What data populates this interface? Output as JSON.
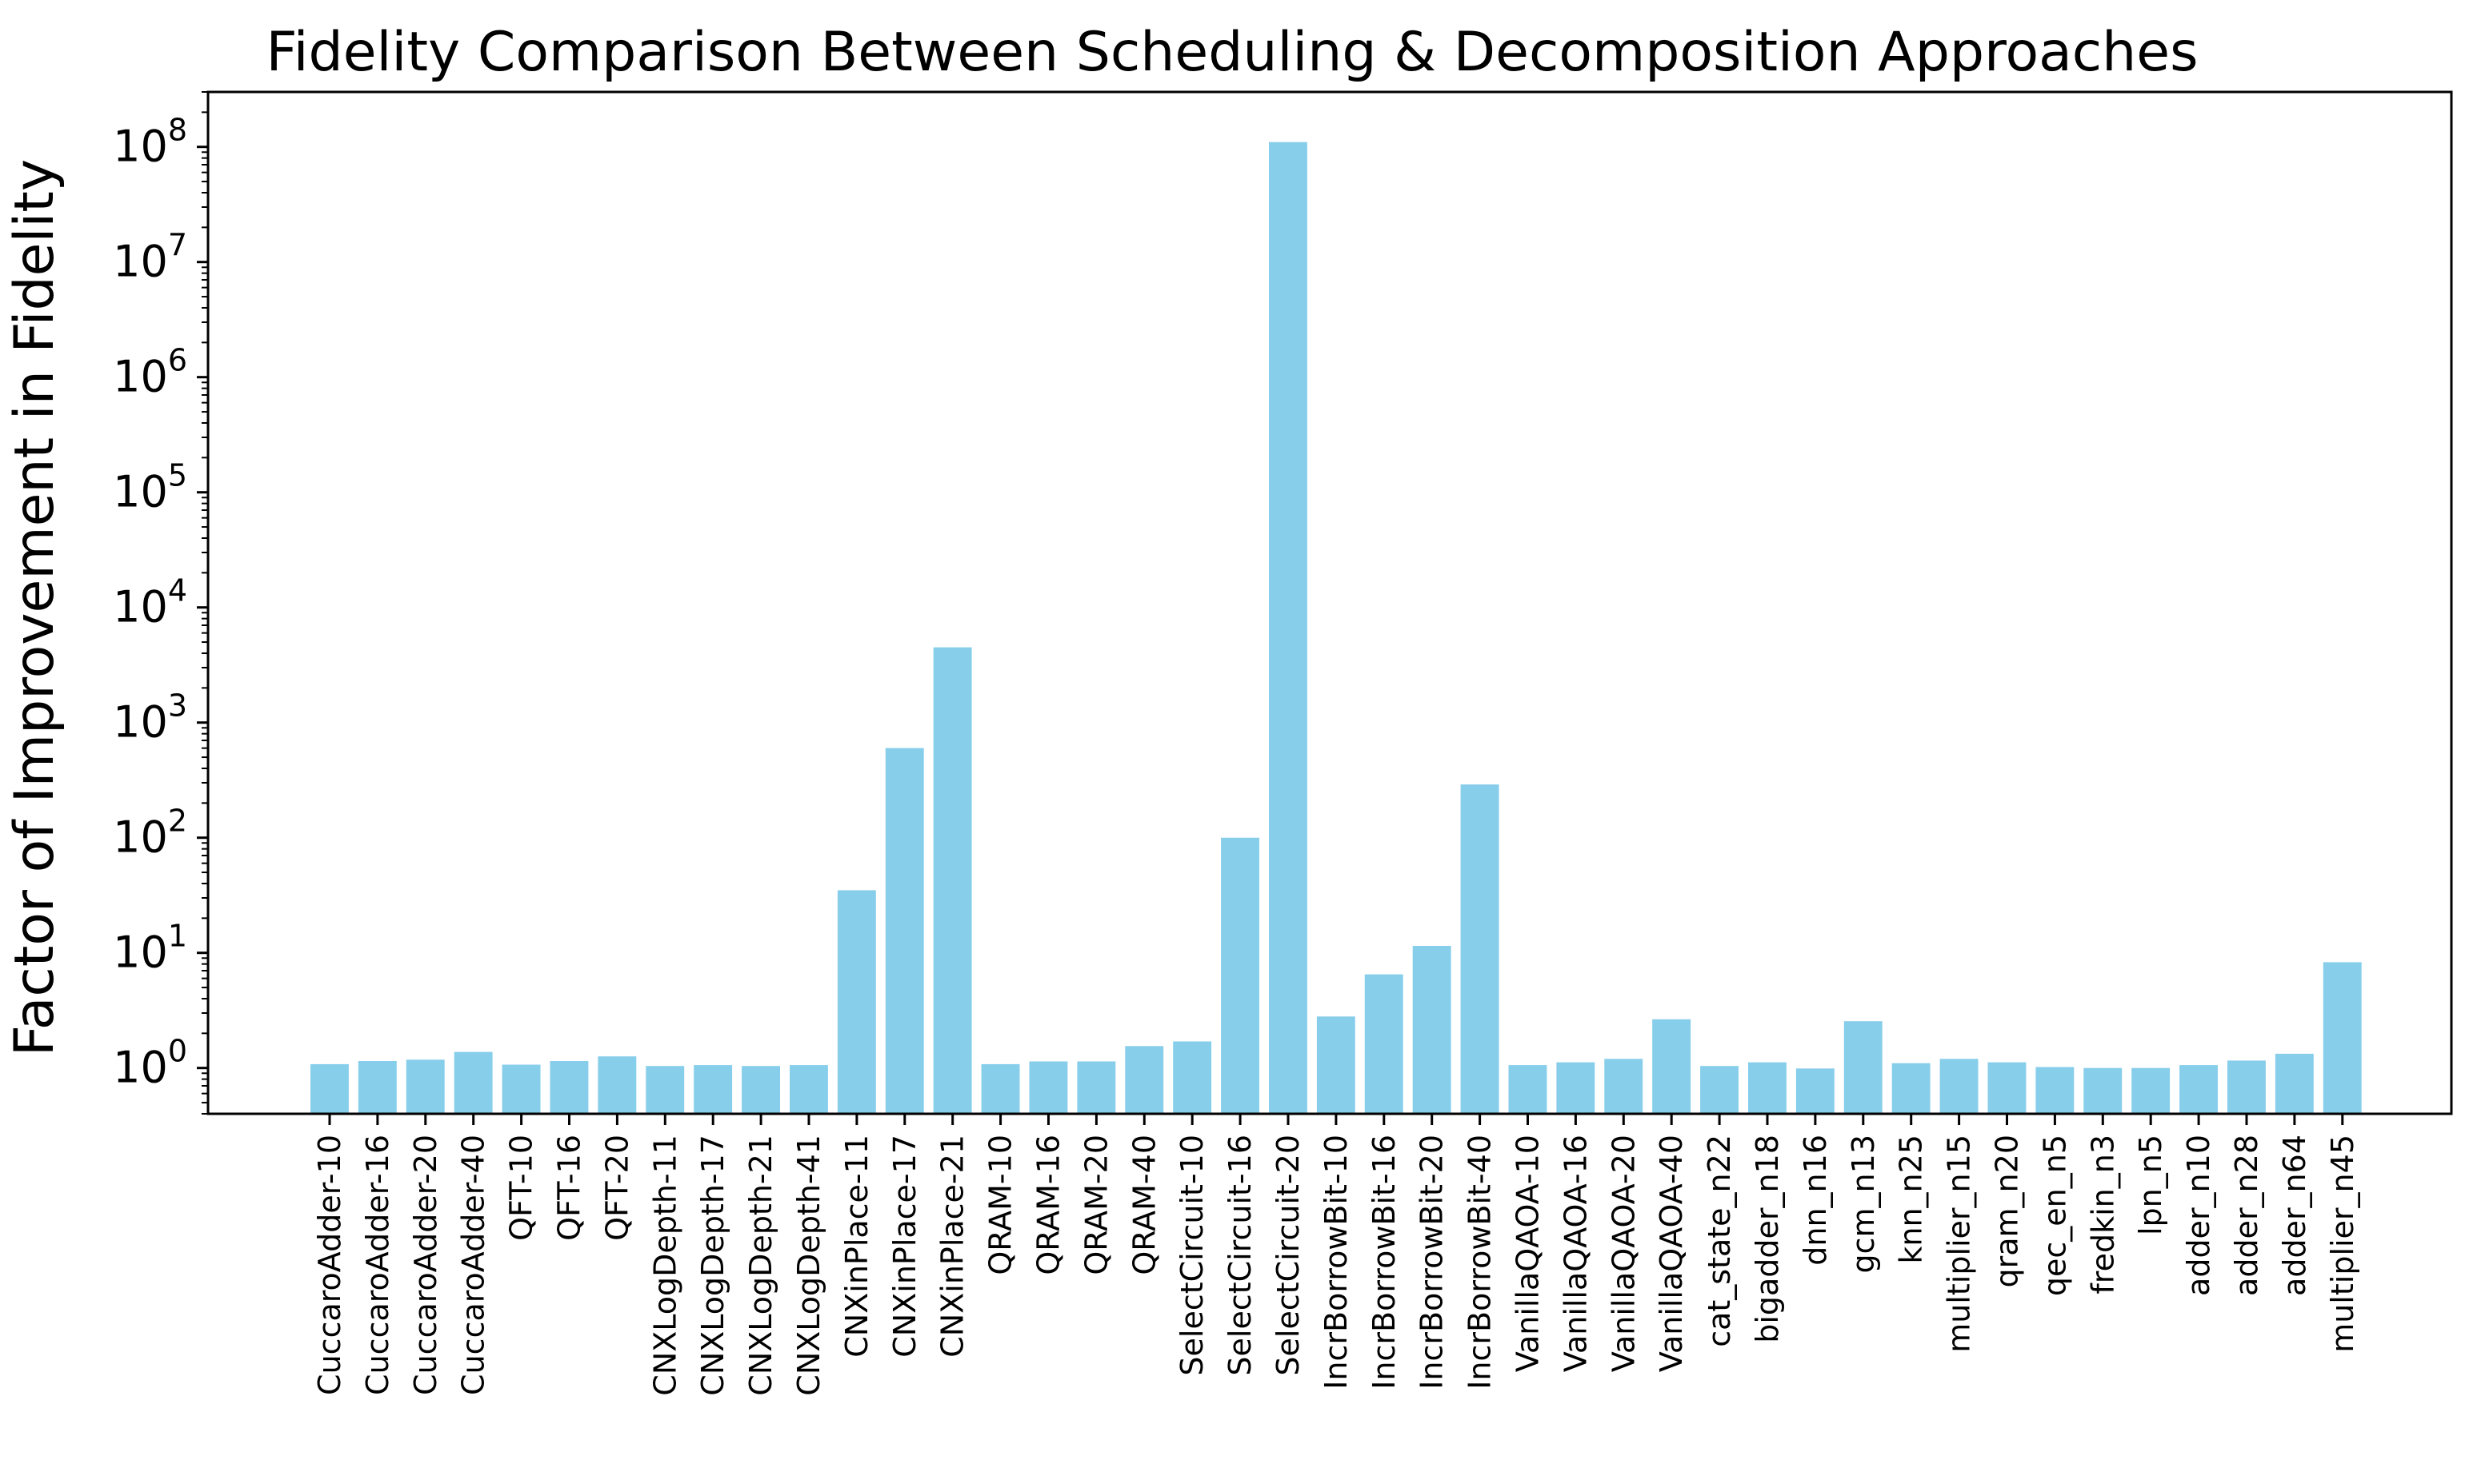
{
  "chart_data": {
    "type": "bar",
    "title": "Fidelity Comparison Between Scheduling & Decomposition Approaches",
    "xlabel": "",
    "ylabel": "Factor of Improvement in Fidelity",
    "yscale": "log",
    "ylim": [
      0.4,
      300000000
    ],
    "yticks": [
      {
        "value": 1,
        "base": "10",
        "exp": "0"
      },
      {
        "value": 10,
        "base": "10",
        "exp": "1"
      },
      {
        "value": 100,
        "base": "10",
        "exp": "2"
      },
      {
        "value": 1000,
        "base": "10",
        "exp": "3"
      },
      {
        "value": 10000,
        "base": "10",
        "exp": "4"
      },
      {
        "value": 100000,
        "base": "10",
        "exp": "5"
      },
      {
        "value": 1000000,
        "base": "10",
        "exp": "6"
      },
      {
        "value": 10000000,
        "base": "10",
        "exp": "7"
      },
      {
        "value": 100000000,
        "base": "10",
        "exp": "8"
      }
    ],
    "bar_color": "#87ceeb",
    "grid": false,
    "categories": [
      "CuccaroAdder-10",
      "CuccaroAdder-16",
      "CuccaroAdder-20",
      "CuccaroAdder-40",
      "QFT-10",
      "QFT-16",
      "QFT-20",
      "CNXLogDepth-11",
      "CNXLogDepth-17",
      "CNXLogDepth-21",
      "CNXLogDepth-41",
      "CNXinPlace-11",
      "CNXinPlace-17",
      "CNXinPlace-21",
      "QRAM-10",
      "QRAM-16",
      "QRAM-20",
      "QRAM-40",
      "SelectCircuit-10",
      "SelectCircuit-16",
      "SelectCircuit-20",
      "IncrBorrowBit-10",
      "IncrBorrowBit-16",
      "IncrBorrowBit-20",
      "IncrBorrowBit-40",
      "VanillaQAOA-10",
      "VanillaQAOA-16",
      "VanillaQAOA-20",
      "VanillaQAOA-40",
      "cat_state_n22",
      "bigadder_n18",
      "dnn_n16",
      "gcm_n13",
      "knn_n25",
      "multiplier_n15",
      "qram_n20",
      "qec_en_n5",
      "fredkin_n3",
      "lpn_n5",
      "adder_n10",
      "adder_n28",
      "adder_n64",
      "multiplier_n45"
    ],
    "values": [
      1.08,
      1.15,
      1.18,
      1.38,
      1.07,
      1.15,
      1.26,
      1.04,
      1.06,
      1.04,
      1.06,
      35,
      600,
      4500,
      1.08,
      1.14,
      1.14,
      1.55,
      1.7,
      100,
      110000000,
      2.8,
      6.5,
      11.5,
      290,
      1.06,
      1.12,
      1.2,
      2.65,
      1.04,
      1.12,
      0.99,
      2.55,
      1.1,
      1.2,
      1.12,
      1.02,
      1.0,
      1.0,
      1.06,
      1.16,
      1.33,
      8.3
    ]
  }
}
